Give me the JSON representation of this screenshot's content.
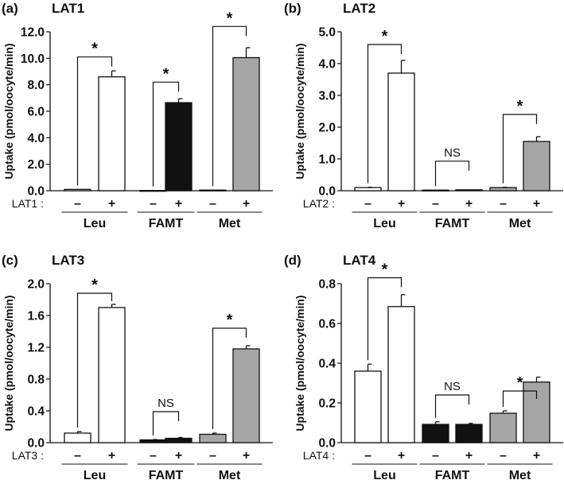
{
  "colors": {
    "Leu": "#ffffff",
    "FAMT": "#111111",
    "Met": "#a6a6a6",
    "stroke": "#111111"
  },
  "chart_data": [
    {
      "type": "bar",
      "panel": "(a)",
      "title": "LAT1",
      "ylabel": "Uptake (pmol/oocyte/min)",
      "ylim": [
        0,
        12
      ],
      "yticks": [
        "0.0",
        "2.0",
        "4.0",
        "6.0",
        "8.0",
        "10.0",
        "12.0"
      ],
      "condition_label": "LAT1 :",
      "groups": [
        "Leu",
        "FAMT",
        "Met"
      ],
      "conditions": [
        "–",
        "+"
      ],
      "values": [
        [
          0.1,
          8.6
        ],
        [
          0.02,
          6.65
        ],
        [
          0.05,
          10.05
        ]
      ],
      "errors": [
        [
          0.0,
          0.45
        ],
        [
          0.0,
          0.3
        ],
        [
          0.0,
          0.75
        ]
      ],
      "significance": [
        {
          "label": "*",
          "level": 10.1
        },
        {
          "label": "*",
          "level": 8.2
        },
        {
          "label": "*",
          "level": 12.4
        }
      ]
    },
    {
      "type": "bar",
      "panel": "(b)",
      "title": "LAT2",
      "ylabel": "Uptake (pmol/oocyte/min)",
      "ylim": [
        0,
        5
      ],
      "yticks": [
        "0.0",
        "1.0",
        "2.0",
        "3.0",
        "4.0",
        "5.0"
      ],
      "condition_label": "LAT2 :",
      "groups": [
        "Leu",
        "FAMT",
        "Met"
      ],
      "conditions": [
        "–",
        "+"
      ],
      "values": [
        [
          0.1,
          3.7
        ],
        [
          0.02,
          0.03
        ],
        [
          0.1,
          1.55
        ]
      ],
      "errors": [
        [
          0.01,
          0.4
        ],
        [
          0.0,
          0.0
        ],
        [
          0.01,
          0.15
        ]
      ],
      "significance": [
        {
          "label": "*",
          "level": 4.6
        },
        {
          "label": "NS",
          "level": 0.93
        },
        {
          "label": "*",
          "level": 2.4
        }
      ]
    },
    {
      "type": "bar",
      "panel": "(c)",
      "title": "LAT3",
      "ylabel": "Uptake (pmol/oocyte/min)",
      "ylim": [
        0,
        2.0
      ],
      "yticks": [
        "0.0",
        "0.4",
        "0.8",
        "1.2",
        "1.6",
        "2.0"
      ],
      "condition_label": "LAT3 :",
      "groups": [
        "Leu",
        "FAMT",
        "Met"
      ],
      "conditions": [
        "–",
        "+"
      ],
      "values": [
        [
          0.12,
          1.7
        ],
        [
          0.035,
          0.055
        ],
        [
          0.105,
          1.18
        ]
      ],
      "errors": [
        [
          0.02,
          0.04
        ],
        [
          0.005,
          0.01
        ],
        [
          0.015,
          0.04
        ]
      ],
      "significance": [
        {
          "label": "*",
          "level": 1.88
        },
        {
          "label": "NS",
          "level": 0.39
        },
        {
          "label": "*",
          "level": 1.44
        }
      ]
    },
    {
      "type": "bar",
      "panel": "(d)",
      "title": "LAT4",
      "ylabel": "Uptake (pmol/oocyte/min)",
      "ylim": [
        0,
        0.8
      ],
      "yticks": [
        "0.0",
        "0.2",
        "0.4",
        "0.6",
        "0.8"
      ],
      "condition_label": "LAT4 :",
      "groups": [
        "Leu",
        "FAMT",
        "Met"
      ],
      "conditions": [
        "–",
        "+"
      ],
      "values": [
        [
          0.36,
          0.685
        ],
        [
          0.092,
          0.092
        ],
        [
          0.148,
          0.305
        ]
      ],
      "errors": [
        [
          0.035,
          0.06
        ],
        [
          0.013,
          0.005
        ],
        [
          0.012,
          0.025
        ]
      ],
      "significance": [
        {
          "label": "*",
          "level": 0.83
        },
        {
          "label": "NS",
          "level": 0.24
        },
        {
          "label": "*",
          "level": 0.26
        }
      ]
    }
  ]
}
